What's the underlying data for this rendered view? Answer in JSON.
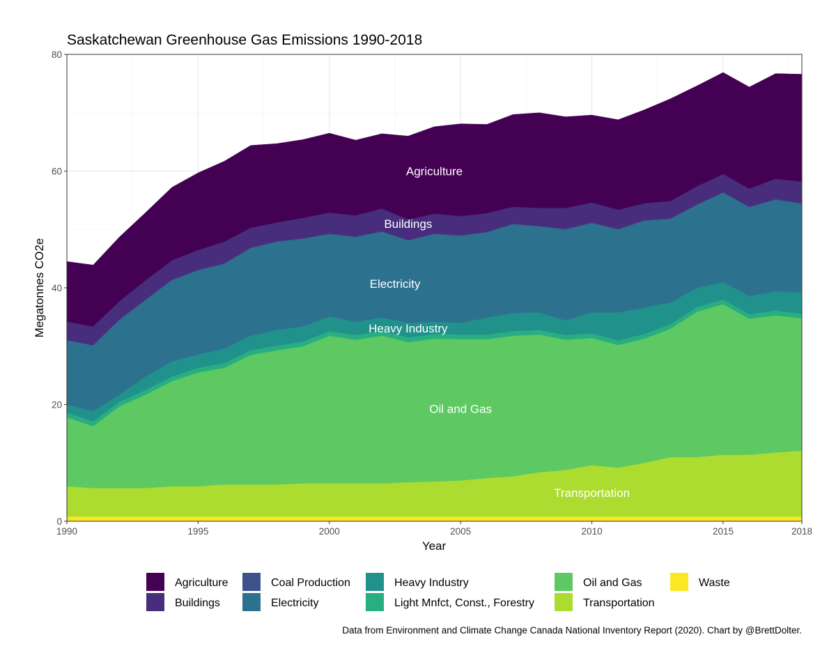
{
  "chart_data": {
    "type": "area",
    "stacked": true,
    "title": "Saskatchewan Greenhouse Gas Emissions 1990-2018",
    "xlabel": "Year",
    "ylabel": "Megatonnes CO2e",
    "caption": "Data from Environment and Climate Change Canada National Inventory Report (2020). Chart by @BrettDolter.",
    "xlim": [
      1990,
      2018
    ],
    "ylim": [
      0,
      80
    ],
    "x_ticks": [
      1990,
      1995,
      2000,
      2005,
      2010,
      2015,
      2018
    ],
    "y_ticks": [
      0,
      20,
      40,
      60,
      80
    ],
    "grid": true,
    "legend_position": "bottom",
    "x": [
      1990,
      1991,
      1992,
      1993,
      1994,
      1995,
      1996,
      1997,
      1998,
      1999,
      2000,
      2001,
      2002,
      2003,
      2004,
      2005,
      2006,
      2007,
      2008,
      2009,
      2010,
      2011,
      2012,
      2013,
      2014,
      2015,
      2016,
      2017,
      2018
    ],
    "series": [
      {
        "name": "Waste",
        "color": "#fde725",
        "values": [
          0.8,
          0.8,
          0.8,
          0.8,
          0.8,
          0.8,
          0.8,
          0.8,
          0.8,
          0.8,
          0.8,
          0.8,
          0.8,
          0.8,
          0.8,
          0.8,
          0.8,
          0.8,
          0.8,
          0.8,
          0.8,
          0.8,
          0.8,
          0.8,
          0.8,
          0.8,
          0.8,
          0.8,
          0.8
        ]
      },
      {
        "name": "Transportation",
        "color": "#addc30",
        "values": [
          5.2,
          4.9,
          4.9,
          4.9,
          5.2,
          5.2,
          5.5,
          5.5,
          5.5,
          5.7,
          5.7,
          5.7,
          5.7,
          5.9,
          6.0,
          6.2,
          6.6,
          6.9,
          7.6,
          8.0,
          8.8,
          8.4,
          9.2,
          10.2,
          10.2,
          10.6,
          10.6,
          11.0,
          11.3
        ]
      },
      {
        "name": "Oil and Gas",
        "color": "#5ec962",
        "values": [
          11.8,
          10.6,
          14.0,
          16.0,
          18.0,
          19.5,
          20.0,
          22.2,
          23.0,
          23.5,
          25.3,
          24.6,
          25.3,
          24.0,
          24.5,
          24.2,
          23.8,
          24.1,
          23.6,
          22.3,
          21.8,
          21.0,
          21.3,
          22.0,
          24.9,
          25.8,
          23.3,
          23.5,
          22.7
        ]
      },
      {
        "name": "Light Mnfct, Const., Forestry",
        "color": "#28ae80",
        "values": [
          0.8,
          0.8,
          0.8,
          0.8,
          0.8,
          0.8,
          0.8,
          0.8,
          0.8,
          0.8,
          0.8,
          0.8,
          0.8,
          0.8,
          0.8,
          0.8,
          0.8,
          0.8,
          0.8,
          0.8,
          0.8,
          0.8,
          0.8,
          0.8,
          0.8,
          0.8,
          0.8,
          0.8,
          0.8
        ]
      },
      {
        "name": "Heavy Industry",
        "color": "#21918c",
        "values": [
          1.4,
          1.8,
          1.2,
          2.3,
          2.6,
          2.3,
          2.5,
          2.5,
          2.7,
          2.6,
          2.5,
          2.3,
          2.3,
          2.5,
          2.1,
          2.0,
          2.9,
          3.1,
          3.0,
          2.5,
          3.6,
          4.8,
          4.5,
          3.7,
          3.3,
          3.0,
          3.1,
          3.3,
          3.6
        ]
      },
      {
        "name": "Electricity",
        "color": "#2c728e",
        "values": [
          11.0,
          11.2,
          12.8,
          13.1,
          13.9,
          14.4,
          14.5,
          15.0,
          15.1,
          15.0,
          14.1,
          14.5,
          14.7,
          14.1,
          15.0,
          14.9,
          14.6,
          15.2,
          14.7,
          15.6,
          15.3,
          14.2,
          14.9,
          14.3,
          14.2,
          15.3,
          15.2,
          15.7,
          15.2
        ]
      },
      {
        "name": "Coal Production",
        "color": "#3b528b",
        "values": [
          0.1,
          0.1,
          0.1,
          0.1,
          0.1,
          0.1,
          0.1,
          0.1,
          0.1,
          0.1,
          0.1,
          0.1,
          0.1,
          0.1,
          0.1,
          0.1,
          0.1,
          0.1,
          0.1,
          0.1,
          0.1,
          0.1,
          0.1,
          0.1,
          0.1,
          0.1,
          0.1,
          0.1,
          0.1
        ]
      },
      {
        "name": "Buildings",
        "color": "#472d7b",
        "values": [
          3.1,
          3.2,
          3.1,
          3.3,
          3.3,
          3.4,
          3.7,
          3.4,
          3.2,
          3.5,
          3.6,
          3.6,
          3.9,
          3.5,
          3.4,
          3.3,
          3.2,
          2.9,
          3.1,
          3.6,
          3.4,
          3.3,
          2.9,
          3.0,
          3.1,
          3.1,
          3.1,
          3.5,
          3.7
        ]
      },
      {
        "name": "Agriculture",
        "color": "#440154",
        "values": [
          10.3,
          10.5,
          11.0,
          11.6,
          12.5,
          13.2,
          13.8,
          14.1,
          13.5,
          13.4,
          13.6,
          12.9,
          12.8,
          14.3,
          14.9,
          15.8,
          15.2,
          15.8,
          16.3,
          15.6,
          15.0,
          15.4,
          16.0,
          17.5,
          17.2,
          17.4,
          17.4,
          18.0,
          18.4
        ]
      }
    ],
    "area_labels": [
      {
        "text": "Agriculture",
        "x": 2004,
        "y": 60
      },
      {
        "text": "Buildings",
        "x": 2003,
        "y": 51
      },
      {
        "text": "Electricity",
        "x": 2002.5,
        "y": 40.7
      },
      {
        "text": "Heavy Industry",
        "x": 2003,
        "y": 33.1
      },
      {
        "text": "Oil and Gas",
        "x": 2005,
        "y": 19.3
      },
      {
        "text": "Transportation",
        "x": 2010,
        "y": 4.9
      }
    ],
    "legend": [
      {
        "name": "Agriculture",
        "color": "#440154"
      },
      {
        "name": "Buildings",
        "color": "#472d7b"
      },
      {
        "name": "Coal Production",
        "color": "#3b528b"
      },
      {
        "name": "Electricity",
        "color": "#2c728e"
      },
      {
        "name": "Heavy Industry",
        "color": "#21918c"
      },
      {
        "name": "Light Mnfct, Const., Forestry",
        "color": "#28ae80"
      },
      {
        "name": "Oil and Gas",
        "color": "#5ec962"
      },
      {
        "name": "Transportation",
        "color": "#addc30"
      },
      {
        "name": "Waste",
        "color": "#fde725"
      }
    ]
  }
}
